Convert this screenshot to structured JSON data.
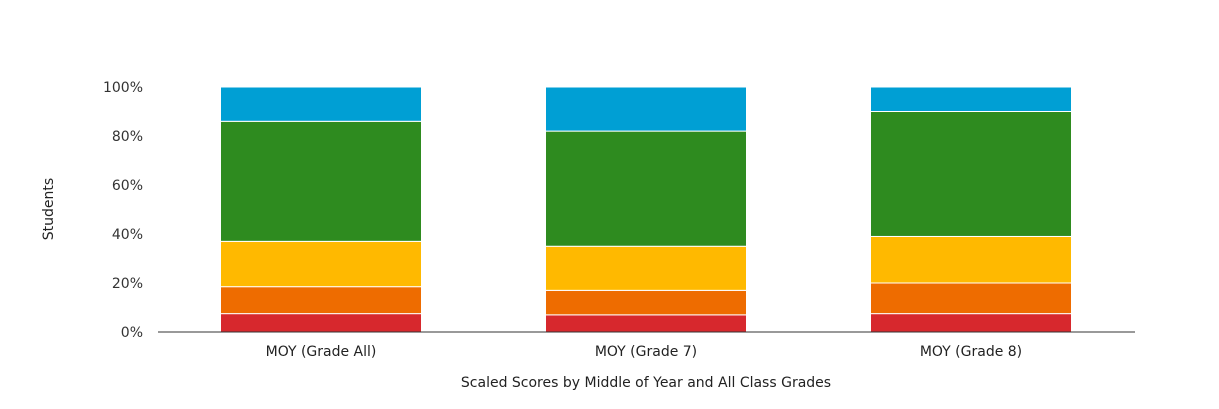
{
  "chart_data": {
    "type": "bar",
    "stacked": true,
    "categories": [
      "MOY (Grade All)",
      "MOY (Grade 7)",
      "MOY (Grade 8)"
    ],
    "series": [
      {
        "color": "#d7282d",
        "values": [
          7.5,
          7,
          7.5
        ]
      },
      {
        "color": "#ee6c00",
        "values": [
          11,
          10,
          12.5
        ]
      },
      {
        "color": "#ffb900",
        "values": [
          18.5,
          18,
          19
        ]
      },
      {
        "color": "#2e8b1f",
        "values": [
          49,
          47,
          51
        ]
      },
      {
        "color": "#009fd4",
        "values": [
          14,
          18,
          10
        ]
      }
    ],
    "ylabel": "Students",
    "xlabel": "Scaled Scores by Middle of Year and All Class Grades",
    "ylim": [
      0,
      100
    ],
    "yticks": [
      "0%",
      "20%",
      "40%",
      "60%",
      "80%",
      "100%"
    ],
    "grid": false,
    "legend": "none"
  }
}
